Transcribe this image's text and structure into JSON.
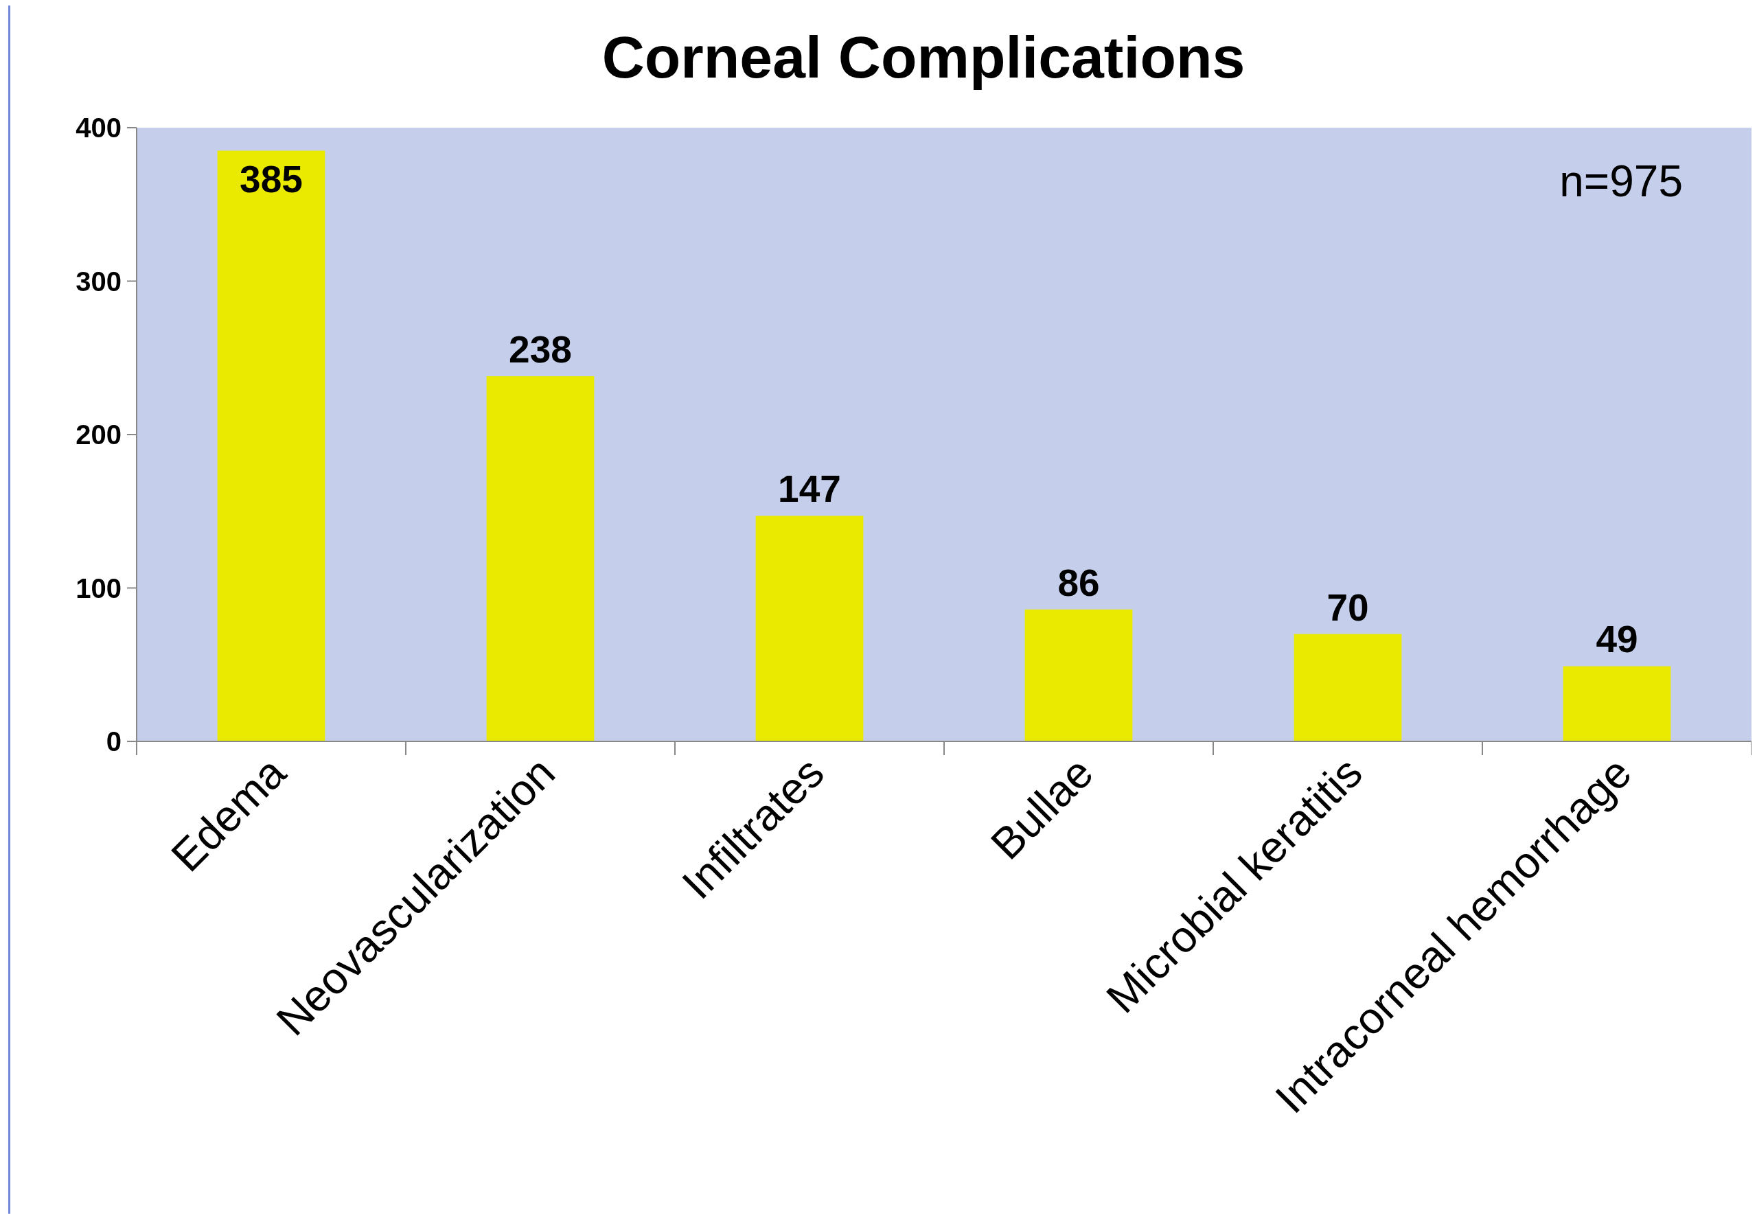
{
  "chart_data": {
    "type": "bar",
    "title": "Corneal Complications",
    "categories": [
      "Edema",
      "Neovascularization",
      "Infiltrates",
      "Bullae",
      "Microbial keratitis",
      "Intracorneal hemorrhage"
    ],
    "values": [
      385,
      238,
      147,
      86,
      70,
      49
    ],
    "color": "#eaea00",
    "ylim": [
      0,
      400
    ],
    "yticks": [
      0,
      100,
      200,
      300,
      400
    ],
    "data_labels": true,
    "annotations": [
      "n=975"
    ]
  }
}
